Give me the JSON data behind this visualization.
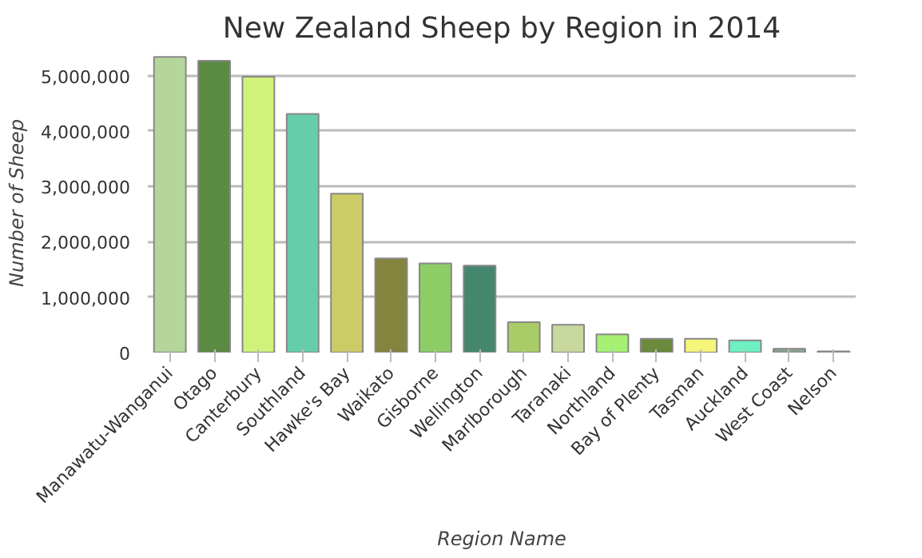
{
  "chart_data": {
    "type": "bar",
    "title": "New Zealand Sheep by Region in 2014",
    "xlabel": "Region Name",
    "ylabel": "Number of Sheep",
    "categories": [
      "Manawatu-Wanganui",
      "Otago",
      "Canterbury",
      "Southland",
      "Hawke's Bay",
      "Waikato",
      "Gisborne",
      "Wellington",
      "Marlborough",
      "Taranaki",
      "Northland",
      "Bay of Plenty",
      "Tasman",
      "Auckland",
      "West Coast",
      "Nelson"
    ],
    "values": [
      5340000,
      5270000,
      4980000,
      4310000,
      2870000,
      1700000,
      1610000,
      1570000,
      550000,
      500000,
      330000,
      250000,
      250000,
      220000,
      70000,
      20000
    ],
    "colors": [
      "#b5d69b",
      "#5b8a43",
      "#d1f27a",
      "#66cdaa",
      "#cccc66",
      "#85843f",
      "#8ccd66",
      "#45876e",
      "#a9cc66",
      "#c9d89c",
      "#a6f074",
      "#6b8a3d",
      "#f5f57a",
      "#6ef0c2",
      "#8aa38f",
      "#7a7a7a"
    ],
    "ylim": [
      0,
      5400000
    ],
    "yticks": [
      {
        "value": 0,
        "label": "0"
      },
      {
        "value": 1000000,
        "label": "1,000,000"
      },
      {
        "value": 2000000,
        "label": "2,000,000"
      },
      {
        "value": 3000000,
        "label": "3,000,000"
      },
      {
        "value": 4000000,
        "label": "4,000,000"
      },
      {
        "value": 5000000,
        "label": "5,000,000"
      }
    ],
    "grid": "y"
  }
}
